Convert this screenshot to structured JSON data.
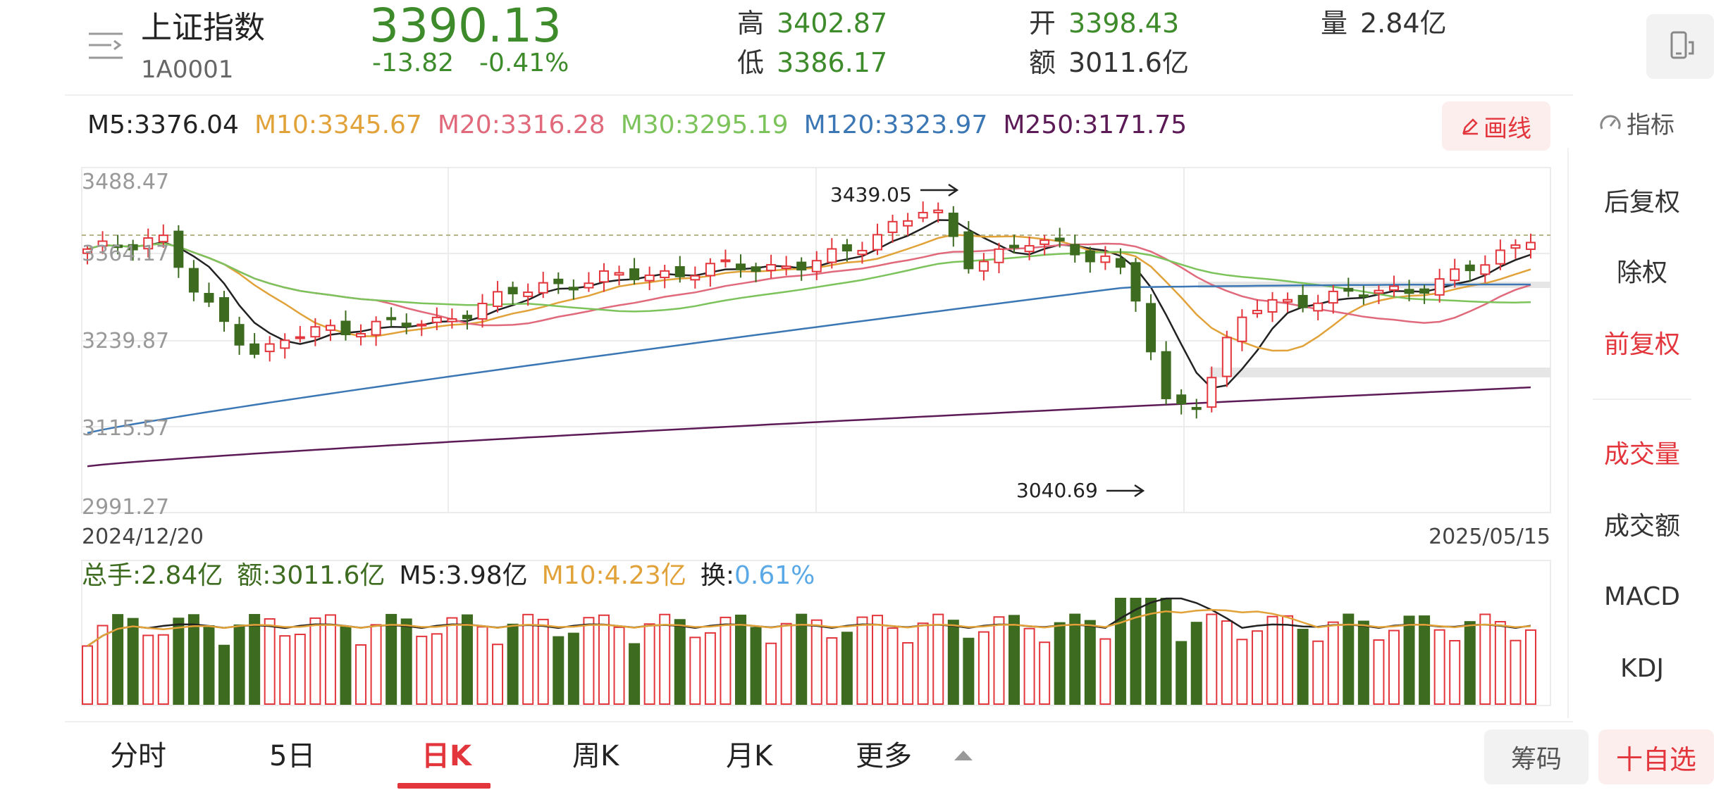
{
  "header": {
    "menu_icon": "menu-icon",
    "name": "上证指数",
    "code": "1A0001",
    "price": "3390.13",
    "change": "-13.82",
    "change_pct": "-0.41%",
    "high_label": "高",
    "high_value": "3402.87",
    "low_label": "低",
    "low_value": "3386.17",
    "open_label": "开",
    "open_value": "3398.43",
    "amount_label": "额",
    "amount_value": "3011.6亿",
    "volume_label": "量",
    "volume_value": "2.84亿",
    "rotate_icon": "screen-rotate-icon"
  },
  "ma_legend": [
    {
      "label": "M5:3376.04",
      "color": "#222222"
    },
    {
      "label": "M10:3345.67",
      "color": "#e1a23a"
    },
    {
      "label": "M20:3316.28",
      "color": "#e06a7c"
    },
    {
      "label": "M30:3295.19",
      "color": "#7cc35c"
    },
    {
      "label": "M120:3323.97",
      "color": "#3c77b5"
    },
    {
      "label": "M250:3171.75",
      "color": "#5c1a56"
    }
  ],
  "draw_button": {
    "label": "画线",
    "icon": "pencil-icon"
  },
  "indicator_button": {
    "label": "指标",
    "icon": "gauge-icon"
  },
  "price_axis": [
    "3488.47",
    "3364.17",
    "3239.87",
    "3115.57",
    "2991.27"
  ],
  "annotations": {
    "max": "3439.05",
    "min": "3040.69"
  },
  "date_range": {
    "start": "2024/12/20",
    "end": "2025/05/15"
  },
  "volume_legend": {
    "total": "总手:2.84亿",
    "amount": "额:3011.6亿",
    "m5": "M5:3.98亿",
    "m10": "M10:4.23亿",
    "turnover_label": "换:",
    "turnover_value": "0.61%"
  },
  "side_menu": [
    {
      "label": "后复权",
      "active": false
    },
    {
      "label": "除权",
      "active": false
    },
    {
      "label": "前复权",
      "active": true
    },
    {
      "label": "成交量",
      "active": true
    },
    {
      "label": "成交额",
      "active": false
    },
    {
      "label": "MACD",
      "active": false
    },
    {
      "label": "KDJ",
      "active": false
    }
  ],
  "bottom_tabs": [
    {
      "label": "分时",
      "active": false
    },
    {
      "label": "5日",
      "active": false
    },
    {
      "label": "日K",
      "active": true
    },
    {
      "label": "周K",
      "active": false
    },
    {
      "label": "月K",
      "active": false
    },
    {
      "label": "更多",
      "active": false
    }
  ],
  "chips_button": "筹码",
  "add_watch_button": "十自选",
  "colors": {
    "up": "#e2363c",
    "down": "#3d6b1f",
    "accent": "#e2363c"
  },
  "chart_data": {
    "type": "candlestick",
    "x_range": [
      "2024/12/20",
      "2025/05/15"
    ],
    "ylim": [
      2991.27,
      3488.47
    ],
    "y_ticks": [
      3488.47,
      3364.17,
      3239.87,
      3115.57,
      2991.27
    ],
    "annotations": [
      {
        "label": "3439.05",
        "value": 3439.05
      },
      {
        "label": "3040.69",
        "value": 3040.69
      }
    ],
    "series": [
      {
        "name": "M5",
        "last": 3376.04
      },
      {
        "name": "M10",
        "last": 3345.67
      },
      {
        "name": "M20",
        "last": 3316.28
      },
      {
        "name": "M30",
        "last": 3295.19
      },
      {
        "name": "M120",
        "last": 3323.97
      },
      {
        "name": "M250",
        "last": 3171.75
      }
    ]
  }
}
